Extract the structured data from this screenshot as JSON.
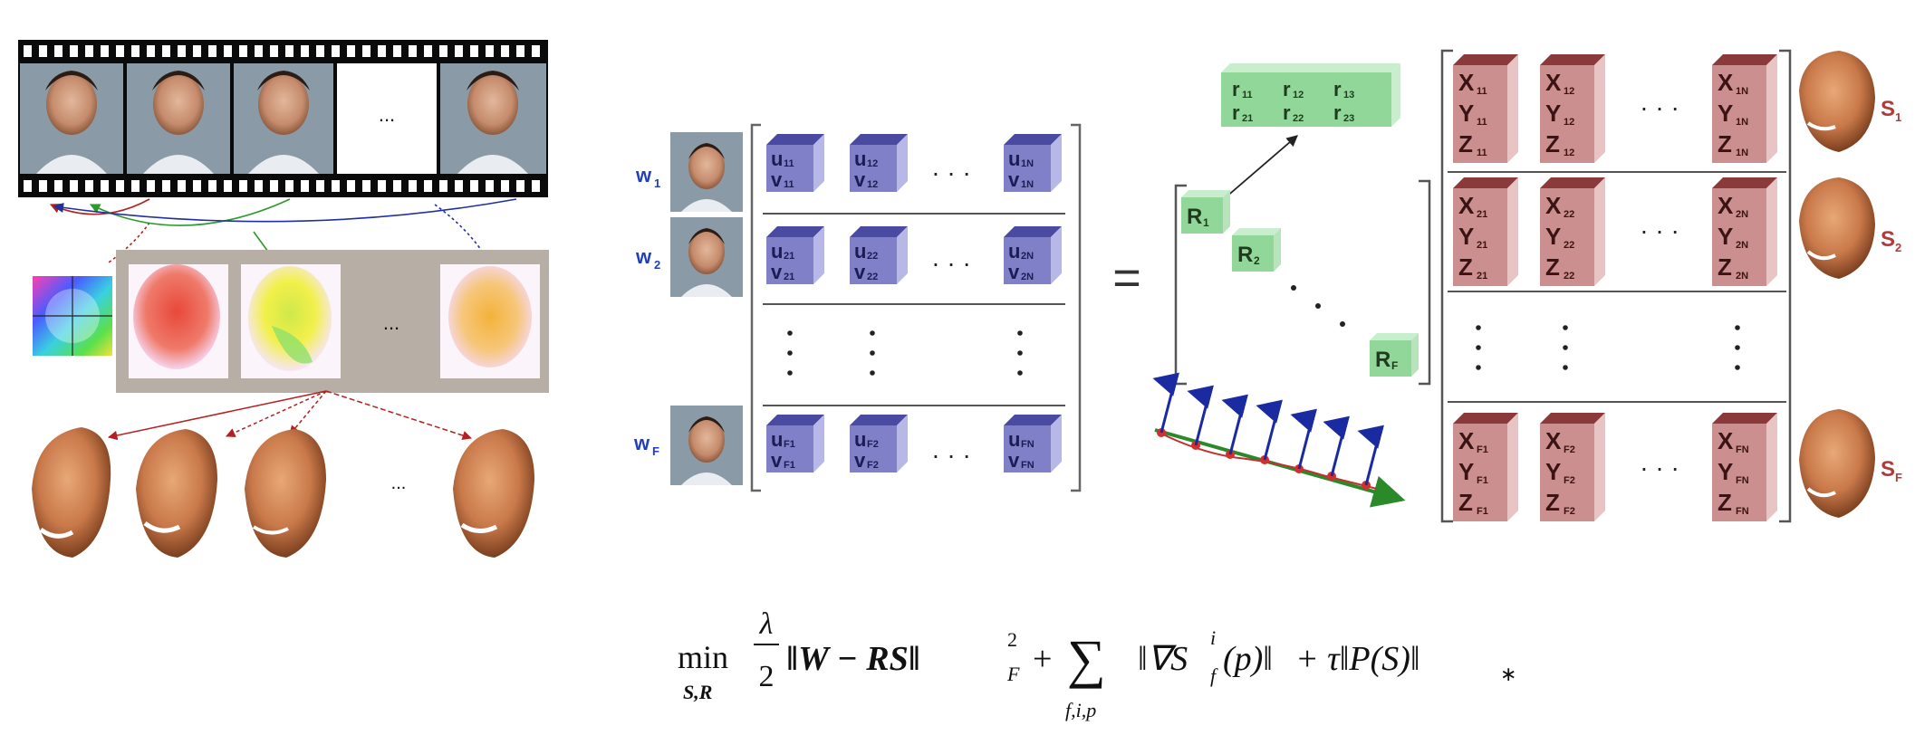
{
  "filmstrip": {
    "ellipsis": "..."
  },
  "flow": {
    "ellipsis": "..."
  },
  "faces3d": {
    "ellipsis": "..."
  },
  "W": {
    "row_weights": [
      "w",
      "w",
      "w"
    ],
    "row_weight_subs": [
      "1",
      "2",
      "F"
    ],
    "rows": [
      {
        "cells": [
          {
            "u": "11",
            "v": "11"
          },
          {
            "u": "12",
            "v": "12"
          },
          {
            "u": "1N",
            "v": "1N"
          }
        ]
      },
      {
        "cells": [
          {
            "u": "21",
            "v": "21"
          },
          {
            "u": "22",
            "v": "22"
          },
          {
            "u": "2N",
            "v": "2N"
          }
        ]
      },
      {
        "cells": [
          {
            "u": "F1",
            "v": "F1"
          },
          {
            "u": "F2",
            "v": "F2"
          },
          {
            "u": "FN",
            "v": "FN"
          }
        ]
      }
    ],
    "hdots": "· · ·",
    "letter_u": "u",
    "letter_v": "v"
  },
  "equals": "=",
  "R": {
    "top_block": {
      "row1": [
        "r",
        "r",
        "r"
      ],
      "row1_subs": [
        "11",
        "12",
        "13"
      ],
      "row2": [
        "r",
        "r",
        "r"
      ],
      "row2_subs": [
        "21",
        "22",
        "23"
      ]
    },
    "diag": [
      {
        "letter": "R",
        "sub": "1"
      },
      {
        "letter": "R",
        "sub": "2"
      },
      {
        "letter": "R",
        "sub": "F"
      }
    ]
  },
  "S": {
    "rows": [
      {
        "cells": [
          "11",
          "12",
          "1N"
        ]
      },
      {
        "cells": [
          "21",
          "22",
          "2N"
        ]
      },
      {
        "cells": [
          "F1",
          "F2",
          "FN"
        ]
      }
    ],
    "letters": [
      "X",
      "Y",
      "Z"
    ],
    "hdots": "· · ·",
    "labels": [
      {
        "letter": "S",
        "sub": "1"
      },
      {
        "letter": "S",
        "sub": "2"
      },
      {
        "letter": "S",
        "sub": "F"
      }
    ]
  },
  "colors": {
    "w_label": "#1f3fbf",
    "s_label": "#b23a3a",
    "u_block_front": "#8080c8",
    "u_block_top": "#4a4aa0",
    "u_block_side": "#b8b8e8",
    "x_block_front": "#cc8f8f",
    "x_block_top": "#8a3a3a",
    "x_block_side": "#e8c4c4",
    "r_block": "#92d79a",
    "r_block_dark": "#5aa865"
  },
  "equation": {
    "min": "min",
    "min_sub": "S,R",
    "frac_num": "λ",
    "frac_den": "2",
    "term1": "‖W − RS‖",
    "term1_sup": "2",
    "term1_sub": "F",
    "plus": "+",
    "sum": "∑",
    "sum_sub": "f,i,p",
    "term2": "‖∇S",
    "term2_sup": "i",
    "term2_sub": "f",
    "term2_tail": "(p)‖",
    "term3": "+ τ‖P(S)‖",
    "term3_sub": "∗"
  }
}
